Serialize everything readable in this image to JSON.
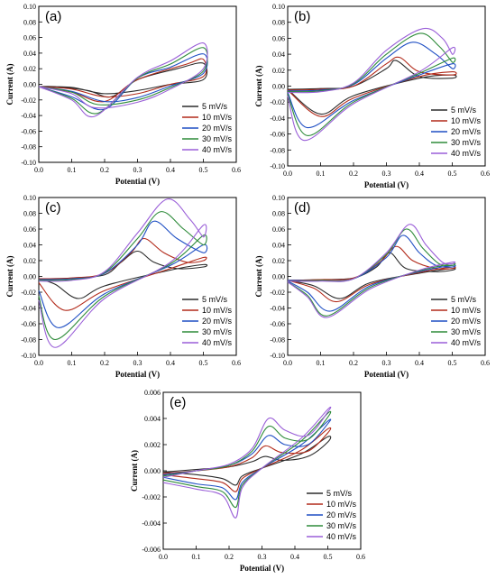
{
  "colors": {
    "5 mV/s": "#2b2b2b",
    "10 mV/s": "#b22a1a",
    "20 mV/s": "#1f4fc4",
    "30 mV/s": "#2e8b3a",
    "40 mV/s": "#9a5fd8"
  },
  "chart_data": [
    {
      "type": "line",
      "panel_label": "(a)",
      "xlabel": "Potential (V)",
      "ylabel": "Current (A)",
      "xlim": [
        0.0,
        0.6
      ],
      "ylim": [
        -0.1,
        0.1
      ],
      "x_ticks": [
        "0.0",
        "0.1",
        "0.2",
        "0.3",
        "0.4",
        "0.5",
        "0.6"
      ],
      "y_ticks": [
        "-0.10",
        "-0.08",
        "-0.06",
        "-0.04",
        "-0.02",
        "0.00",
        "0.02",
        "0.04",
        "0.06",
        "0.08",
        "0.10"
      ],
      "legend": [
        "5 mV/s",
        "10 mV/s",
        "20 mV/s",
        "30 mV/s",
        "40 mV/s"
      ],
      "legend_position": "bottom-right",
      "series": [
        {
          "name": "5 mV/s",
          "x": [
            0.0,
            0.1,
            0.2,
            0.3,
            0.4,
            0.5,
            0.5,
            0.42,
            0.3,
            0.22,
            0.15,
            0.05,
            0.0
          ],
          "y": [
            -0.003,
            -0.004,
            -0.012,
            -0.008,
            0.0,
            0.006,
            0.027,
            0.02,
            0.006,
            -0.016,
            -0.008,
            -0.003,
            -0.003
          ]
        },
        {
          "name": "10 mV/s",
          "x": [
            0.0,
            0.1,
            0.2,
            0.3,
            0.4,
            0.5,
            0.5,
            0.45,
            0.3,
            0.2,
            0.1,
            0.0
          ],
          "y": [
            -0.003,
            -0.006,
            -0.016,
            -0.012,
            0.0,
            0.01,
            0.032,
            0.026,
            0.006,
            -0.022,
            -0.01,
            -0.003
          ]
        },
        {
          "name": "20 mV/s",
          "x": [
            0.0,
            0.1,
            0.2,
            0.3,
            0.4,
            0.5,
            0.5,
            0.4,
            0.3,
            0.2,
            0.1,
            0.0
          ],
          "y": [
            -0.003,
            -0.009,
            -0.022,
            -0.017,
            -0.002,
            0.014,
            0.039,
            0.022,
            0.008,
            -0.032,
            -0.016,
            -0.003
          ]
        },
        {
          "name": "30 mV/s",
          "x": [
            0.0,
            0.1,
            0.18,
            0.3,
            0.4,
            0.5,
            0.5,
            0.4,
            0.3,
            0.18,
            0.1,
            0.0
          ],
          "y": [
            -0.003,
            -0.01,
            -0.026,
            -0.02,
            -0.004,
            0.017,
            0.047,
            0.026,
            0.008,
            -0.037,
            -0.018,
            -0.003
          ]
        },
        {
          "name": "40 mV/s",
          "x": [
            0.0,
            0.1,
            0.17,
            0.3,
            0.4,
            0.5,
            0.5,
            0.4,
            0.3,
            0.17,
            0.1,
            0.0
          ],
          "y": [
            -0.003,
            -0.012,
            -0.03,
            -0.023,
            -0.006,
            0.02,
            0.053,
            0.03,
            0.009,
            -0.041,
            -0.02,
            -0.003
          ]
        }
      ]
    },
    {
      "type": "line",
      "panel_label": "(b)",
      "xlabel": "Potential (V)",
      "ylabel": "Current (A)",
      "xlim": [
        0.0,
        0.6
      ],
      "ylim": [
        -0.1,
        0.1
      ],
      "x_ticks": [
        "0.0",
        "0.1",
        "0.2",
        "0.3",
        "0.4",
        "0.5",
        "0.6"
      ],
      "y_ticks": [
        "-0.10",
        "-0.08",
        "-0.06",
        "-0.04",
        "-0.02",
        "0.00",
        "0.02",
        "0.04",
        "0.06",
        "0.08",
        "0.10"
      ],
      "legend": [
        "5 mV/s",
        "10 mV/s",
        "20 mV/s",
        "30 mV/s",
        "40 mV/s"
      ],
      "legend_position": "bottom-right",
      "series": [
        {
          "name": "5 mV/s",
          "x": [
            0.0,
            0.1,
            0.2,
            0.3,
            0.33,
            0.4,
            0.5,
            0.5,
            0.4,
            0.2,
            0.1,
            0.0
          ],
          "y": [
            -0.004,
            -0.003,
            0.0,
            0.022,
            0.032,
            0.012,
            0.01,
            0.014,
            0.01,
            -0.012,
            -0.035,
            -0.004
          ]
        },
        {
          "name": "10 mV/s",
          "x": [
            0.0,
            0.1,
            0.2,
            0.3,
            0.34,
            0.4,
            0.5,
            0.5,
            0.4,
            0.2,
            0.1,
            0.0
          ],
          "y": [
            -0.005,
            -0.004,
            0.0,
            0.028,
            0.036,
            0.018,
            0.014,
            0.018,
            0.012,
            -0.015,
            -0.038,
            -0.005
          ]
        },
        {
          "name": "20 mV/s",
          "x": [
            0.0,
            0.1,
            0.2,
            0.3,
            0.38,
            0.45,
            0.5,
            0.5,
            0.4,
            0.2,
            0.06,
            0.0
          ],
          "y": [
            -0.006,
            -0.005,
            0.002,
            0.035,
            0.055,
            0.04,
            0.022,
            0.028,
            0.014,
            -0.018,
            -0.052,
            -0.008
          ]
        },
        {
          "name": "30 mV/s",
          "x": [
            0.0,
            0.1,
            0.2,
            0.3,
            0.4,
            0.46,
            0.5,
            0.5,
            0.4,
            0.2,
            0.06,
            0.0
          ],
          "y": [
            -0.007,
            -0.006,
            0.003,
            0.04,
            0.066,
            0.05,
            0.03,
            0.035,
            0.016,
            -0.02,
            -0.062,
            -0.01
          ]
        },
        {
          "name": "40 mV/s",
          "x": [
            0.0,
            0.1,
            0.2,
            0.3,
            0.41,
            0.47,
            0.5,
            0.5,
            0.4,
            0.2,
            0.05,
            0.0
          ],
          "y": [
            -0.008,
            -0.007,
            0.004,
            0.045,
            0.072,
            0.06,
            0.04,
            0.048,
            0.018,
            -0.022,
            -0.068,
            -0.012
          ]
        }
      ]
    },
    {
      "type": "line",
      "panel_label": "(c)",
      "xlabel": "Potential (V)",
      "ylabel": "Current (A)",
      "xlim": [
        0.0,
        0.6
      ],
      "ylim": [
        -0.1,
        0.1
      ],
      "x_ticks": [
        "0.0",
        "0.1",
        "0.2",
        "0.3",
        "0.4",
        "0.5",
        "0.6"
      ],
      "y_ticks": [
        "-0.10",
        "-0.08",
        "-0.06",
        "-0.04",
        "-0.02",
        "0.00",
        "0.02",
        "0.04",
        "0.06",
        "0.08",
        "0.10"
      ],
      "legend": [
        "5 mV/s",
        "10 mV/s",
        "20 mV/s",
        "30 mV/s",
        "40 mV/s"
      ],
      "legend_position": "bottom-right",
      "series": [
        {
          "name": "5 mV/s",
          "x": [
            0.0,
            0.1,
            0.2,
            0.25,
            0.3,
            0.35,
            0.42,
            0.5,
            0.5,
            0.4,
            0.2,
            0.12,
            0.05,
            0.0
          ],
          "y": [
            -0.003,
            -0.002,
            0.002,
            0.018,
            0.032,
            0.018,
            0.01,
            0.012,
            0.015,
            0.008,
            -0.012,
            -0.028,
            -0.01,
            -0.003
          ]
        },
        {
          "name": "10 mV/s",
          "x": [
            0.0,
            0.1,
            0.2,
            0.28,
            0.32,
            0.38,
            0.45,
            0.5,
            0.5,
            0.4,
            0.2,
            0.08,
            0.0
          ],
          "y": [
            -0.003,
            -0.002,
            0.004,
            0.03,
            0.048,
            0.03,
            0.018,
            0.02,
            0.024,
            0.01,
            -0.018,
            -0.043,
            -0.008
          ]
        },
        {
          "name": "20 mV/s",
          "x": [
            0.0,
            0.1,
            0.2,
            0.3,
            0.35,
            0.42,
            0.5,
            0.5,
            0.4,
            0.2,
            0.06,
            0.0
          ],
          "y": [
            -0.004,
            -0.003,
            0.004,
            0.04,
            0.07,
            0.048,
            0.03,
            0.04,
            0.014,
            -0.022,
            -0.065,
            -0.018
          ]
        },
        {
          "name": "30 mV/s",
          "x": [
            0.0,
            0.1,
            0.2,
            0.3,
            0.37,
            0.44,
            0.5,
            0.5,
            0.4,
            0.2,
            0.05,
            0.0
          ],
          "y": [
            -0.005,
            -0.004,
            0.005,
            0.048,
            0.082,
            0.06,
            0.04,
            0.052,
            0.016,
            -0.025,
            -0.08,
            -0.025
          ]
        },
        {
          "name": "40 mV/s",
          "x": [
            0.0,
            0.1,
            0.2,
            0.3,
            0.39,
            0.46,
            0.5,
            0.5,
            0.4,
            0.2,
            0.05,
            0.0
          ],
          "y": [
            -0.006,
            -0.005,
            0.006,
            0.055,
            0.098,
            0.072,
            0.05,
            0.065,
            0.018,
            -0.028,
            -0.09,
            -0.03
          ]
        }
      ]
    },
    {
      "type": "line",
      "panel_label": "(d)",
      "xlabel": "Potential (V)",
      "ylabel": "Current (A)",
      "xlim": [
        0.0,
        0.6
      ],
      "ylim": [
        -0.1,
        0.1
      ],
      "x_ticks": [
        "0.0",
        "0.1",
        "0.2",
        "0.3",
        "0.4",
        "0.5",
        "0.6"
      ],
      "y_ticks": [
        "-0.10",
        "-0.08",
        "-0.06",
        "-0.04",
        "-0.02",
        "0.00",
        "0.02",
        "0.04",
        "0.06",
        "0.08",
        "0.10"
      ],
      "legend": [
        "5 mV/s",
        "10 mV/s",
        "20 mV/s",
        "30 mV/s",
        "40 mV/s"
      ],
      "legend_position": "bottom-right",
      "series": [
        {
          "name": "5 mV/s",
          "x": [
            0.0,
            0.1,
            0.2,
            0.27,
            0.31,
            0.36,
            0.45,
            0.5,
            0.5,
            0.4,
            0.25,
            0.16,
            0.08,
            0.0
          ],
          "y": [
            -0.005,
            -0.004,
            -0.002,
            0.012,
            0.03,
            0.01,
            0.006,
            0.008,
            0.01,
            0.004,
            -0.008,
            -0.028,
            -0.012,
            -0.005
          ]
        },
        {
          "name": "10 mV/s",
          "x": [
            0.0,
            0.1,
            0.2,
            0.28,
            0.33,
            0.38,
            0.45,
            0.5,
            0.5,
            0.4,
            0.25,
            0.15,
            0.08,
            0.0
          ],
          "y": [
            -0.005,
            -0.004,
            -0.002,
            0.018,
            0.038,
            0.02,
            0.01,
            0.01,
            0.012,
            0.005,
            -0.01,
            -0.032,
            -0.015,
            -0.005
          ]
        },
        {
          "name": "20 mV/s",
          "x": [
            0.0,
            0.1,
            0.2,
            0.3,
            0.35,
            0.4,
            0.45,
            0.5,
            0.5,
            0.4,
            0.25,
            0.13,
            0.06,
            0.0
          ],
          "y": [
            -0.005,
            -0.005,
            -0.003,
            0.024,
            0.052,
            0.03,
            0.014,
            0.012,
            0.014,
            0.006,
            -0.012,
            -0.044,
            -0.02,
            -0.006
          ]
        },
        {
          "name": "30 mV/s",
          "x": [
            0.0,
            0.1,
            0.2,
            0.3,
            0.36,
            0.41,
            0.46,
            0.5,
            0.5,
            0.4,
            0.25,
            0.12,
            0.06,
            0.0
          ],
          "y": [
            -0.006,
            -0.005,
            -0.003,
            0.028,
            0.06,
            0.036,
            0.016,
            0.014,
            0.016,
            0.007,
            -0.014,
            -0.05,
            -0.024,
            -0.007
          ]
        },
        {
          "name": "40 mV/s",
          "x": [
            0.0,
            0.1,
            0.2,
            0.3,
            0.37,
            0.42,
            0.47,
            0.5,
            0.5,
            0.4,
            0.25,
            0.12,
            0.06,
            0.0
          ],
          "y": [
            -0.006,
            -0.006,
            -0.003,
            0.03,
            0.066,
            0.04,
            0.018,
            0.016,
            0.018,
            0.008,
            -0.016,
            -0.052,
            -0.026,
            -0.007
          ]
        }
      ]
    },
    {
      "type": "line",
      "panel_label": "(e)",
      "xlabel": "Potential (V)",
      "ylabel": "Current (A)",
      "xlim": [
        0.0,
        0.6
      ],
      "ylim": [
        -0.006,
        0.006
      ],
      "x_ticks": [
        "0.0",
        "0.1",
        "0.2",
        "0.3",
        "0.4",
        "0.5",
        "0.6"
      ],
      "y_ticks": [
        "-0.006",
        "-0.004",
        "-0.002",
        "0.000",
        "0.002",
        "0.004",
        "0.006"
      ],
      "legend": [
        "5 mV/s",
        "10 mV/s",
        "20 mV/s",
        "30 mV/s",
        "40 mV/s"
      ],
      "legend_position": "bottom-right",
      "series": [
        {
          "name": "5 mV/s",
          "x": [
            0.0,
            0.1,
            0.2,
            0.27,
            0.31,
            0.36,
            0.44,
            0.5,
            0.5,
            0.42,
            0.3,
            0.24,
            0.22,
            0.18,
            0.1,
            0.0
          ],
          "y": [
            -0.0001,
            0.0001,
            0.0003,
            0.0007,
            0.0011,
            0.0008,
            0.0011,
            0.0022,
            0.0026,
            0.0013,
            0.0002,
            -0.0004,
            -0.0011,
            -0.0006,
            -0.0003,
            -0.0001
          ]
        },
        {
          "name": "10 mV/s",
          "x": [
            0.0,
            0.1,
            0.2,
            0.27,
            0.31,
            0.36,
            0.44,
            0.5,
            0.5,
            0.42,
            0.3,
            0.24,
            0.22,
            0.18,
            0.1,
            0.0
          ],
          "y": [
            -0.0002,
            0.0,
            0.0003,
            0.001,
            0.0019,
            0.0014,
            0.0015,
            0.0029,
            0.0032,
            0.0016,
            0.0002,
            -0.0006,
            -0.0016,
            -0.0009,
            -0.0006,
            -0.0003
          ]
        },
        {
          "name": "20 mV/s",
          "x": [
            0.0,
            0.1,
            0.2,
            0.27,
            0.32,
            0.37,
            0.44,
            0.5,
            0.5,
            0.42,
            0.3,
            0.24,
            0.22,
            0.18,
            0.1,
            0.0
          ],
          "y": [
            -0.0003,
            0.0,
            0.0004,
            0.0013,
            0.0027,
            0.002,
            0.002,
            0.0036,
            0.0038,
            0.002,
            0.0002,
            -0.0009,
            -0.0022,
            -0.0013,
            -0.001,
            -0.0005
          ]
        },
        {
          "name": "30 mV/s",
          "x": [
            0.0,
            0.1,
            0.2,
            0.27,
            0.32,
            0.37,
            0.44,
            0.5,
            0.5,
            0.42,
            0.3,
            0.24,
            0.22,
            0.18,
            0.1,
            0.0
          ],
          "y": [
            -0.0004,
            0.0,
            0.0004,
            0.0015,
            0.0034,
            0.0025,
            0.0024,
            0.0041,
            0.0044,
            0.0023,
            0.0002,
            -0.0011,
            -0.0028,
            -0.0016,
            -0.0012,
            -0.0007
          ]
        },
        {
          "name": "40 mV/s",
          "x": [
            0.0,
            0.1,
            0.2,
            0.27,
            0.32,
            0.37,
            0.44,
            0.5,
            0.5,
            0.42,
            0.3,
            0.24,
            0.22,
            0.18,
            0.1,
            0.0
          ],
          "y": [
            -0.0005,
            0.0,
            0.0005,
            0.0017,
            0.004,
            0.0031,
            0.0027,
            0.0045,
            0.0047,
            0.0025,
            0.0002,
            -0.0013,
            -0.0036,
            -0.0019,
            -0.0014,
            -0.0009
          ]
        }
      ]
    }
  ]
}
